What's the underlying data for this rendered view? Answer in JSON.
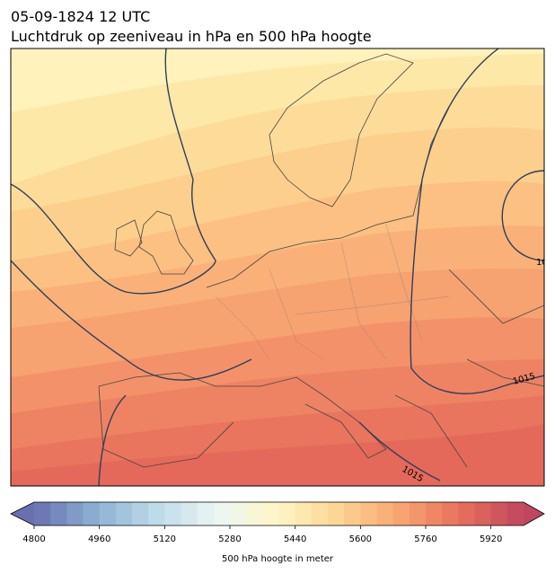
{
  "header": {
    "time": "05-09-1824 12 UTC",
    "title": "Luchtdruk op zeeniveau in hPa en 500 hPa hoogte"
  },
  "map": {
    "isobar_labels": [
      "10",
      "1015",
      "1015"
    ]
  },
  "colorbar": {
    "range": [
      4800,
      6000
    ],
    "ticks": [
      4800,
      4960,
      5120,
      5280,
      5440,
      5600,
      5760,
      5920
    ],
    "label": "500 hPa hoogte in meter",
    "extend": "both"
  }
}
